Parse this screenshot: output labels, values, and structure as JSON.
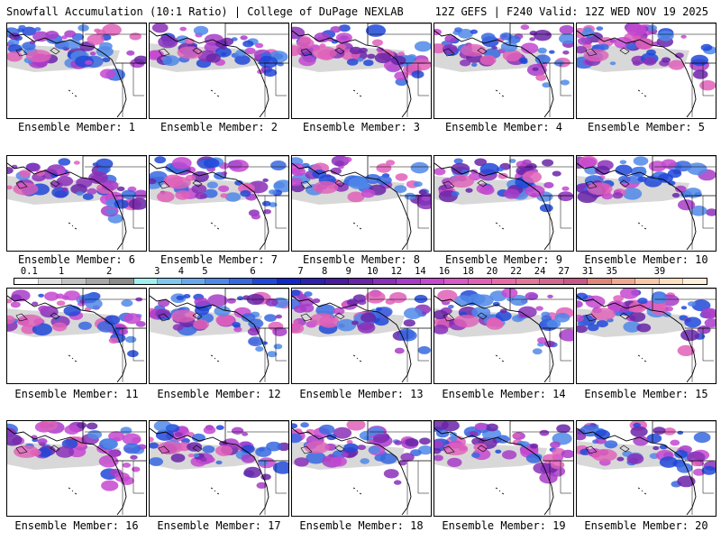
{
  "header": {
    "title_left": "Snowfall Accumulation (10:1 Ratio) | College of DuPage NEXLAB",
    "title_right": "12Z GEFS | F240 Valid: 12Z WED NOV 19 2025"
  },
  "panels": [
    {
      "label": "Ensemble Member: 1"
    },
    {
      "label": "Ensemble Member: 2"
    },
    {
      "label": "Ensemble Member: 3"
    },
    {
      "label": "Ensemble Member: 4"
    },
    {
      "label": "Ensemble Member: 5"
    },
    {
      "label": "Ensemble Member: 6"
    },
    {
      "label": "Ensemble Member: 7"
    },
    {
      "label": "Ensemble Member: 8"
    },
    {
      "label": "Ensemble Member: 9"
    },
    {
      "label": "Ensemble Member: 10"
    },
    {
      "label": "Ensemble Member: 11"
    },
    {
      "label": "Ensemble Member: 12"
    },
    {
      "label": "Ensemble Member: 13"
    },
    {
      "label": "Ensemble Member: 14"
    },
    {
      "label": "Ensemble Member: 15"
    },
    {
      "label": "Ensemble Member: 16"
    },
    {
      "label": "Ensemble Member: 17"
    },
    {
      "label": "Ensemble Member: 18"
    },
    {
      "label": "Ensemble Member: 19"
    },
    {
      "label": "Ensemble Member: 20"
    }
  ],
  "legend": {
    "labels": [
      "0.1",
      "1",
      "2",
      "3",
      "4",
      "5",
      "6",
      "7",
      "8",
      "9",
      "10",
      "12",
      "14",
      "16",
      "18",
      "20",
      "22",
      "24",
      "27",
      "31",
      "35",
      "39"
    ],
    "colors": [
      "#ffffff",
      "#e0e0e0",
      "#c4c4c4",
      "#a8a8a8",
      "#8c8c8c",
      "#a0f0f0",
      "#80c8f0",
      "#6aa8ee",
      "#5088e8",
      "#3868e0",
      "#2048d8",
      "#1028c8",
      "#3020b0",
      "#4a1ca0",
      "#6a24a8",
      "#8a30b8",
      "#a83cc8",
      "#c448d0",
      "#d858c8",
      "#e060b8",
      "#e86aa8",
      "#e07898",
      "#d06890",
      "#c85888",
      "#e08878",
      "#f0a890",
      "#f8c8a8",
      "#fde0c0",
      "#fff0dc"
    ]
  }
}
